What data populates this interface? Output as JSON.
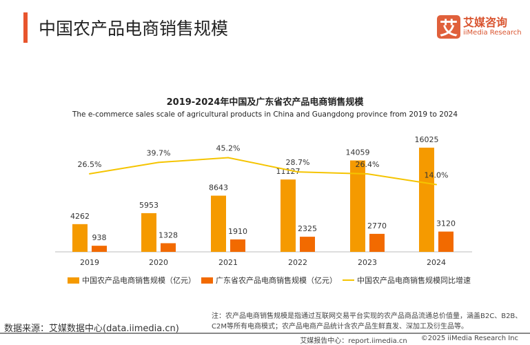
{
  "header": {
    "title": "中国农产品电商销售规模",
    "logo_cn": "艾媒咨询",
    "logo_en": "iiMedia Research",
    "logo_mark": "艾"
  },
  "chart_data": {
    "type": "bar",
    "title": "2019-2024年中国及广东省农产品电商销售规模",
    "subtitle": "The e-commerce sales scale of agricultural products in China and Guangdong province from 2019 to 2024",
    "categories": [
      "2019",
      "2020",
      "2021",
      "2022",
      "2023",
      "2024"
    ],
    "series": [
      {
        "name": "中国农产品电商销售规模（亿元）",
        "type": "bar",
        "color": "#f59a00",
        "values": [
          4262,
          5953,
          8643,
          11127,
          14059,
          16025
        ]
      },
      {
        "name": "广东省农产品电商销售规模（亿元）",
        "type": "bar",
        "color": "#f26a00",
        "values": [
          938,
          1328,
          1910,
          2325,
          2770,
          3120
        ]
      },
      {
        "name": "中国农产品电商销售规模同比增速",
        "type": "line",
        "color": "#f5c400",
        "values": [
          26.5,
          39.7,
          45.2,
          28.7,
          26.4,
          14.0
        ],
        "labels": [
          "26.5%",
          "39.7%",
          "45.2%",
          "28.7%",
          "26.4%",
          "14.0%"
        ]
      }
    ],
    "legend": "bottom",
    "grid": false
  },
  "footer": {
    "note": "注：农产品电商销售规模是指通过互联网交易平台实现的农产品商品流通总价值量，涵盖B2C、B2B、C2M等所有电商模式；农产品电商产品统计含农产品生鲜直发、深加工及衍生品等。",
    "source": "数据来源：艾媒数据中心(data.iimedia.cn)",
    "report": "艾媒报告中心：report.iimedia.cn",
    "copyright": "©2025  iiMedia Research  Inc"
  }
}
